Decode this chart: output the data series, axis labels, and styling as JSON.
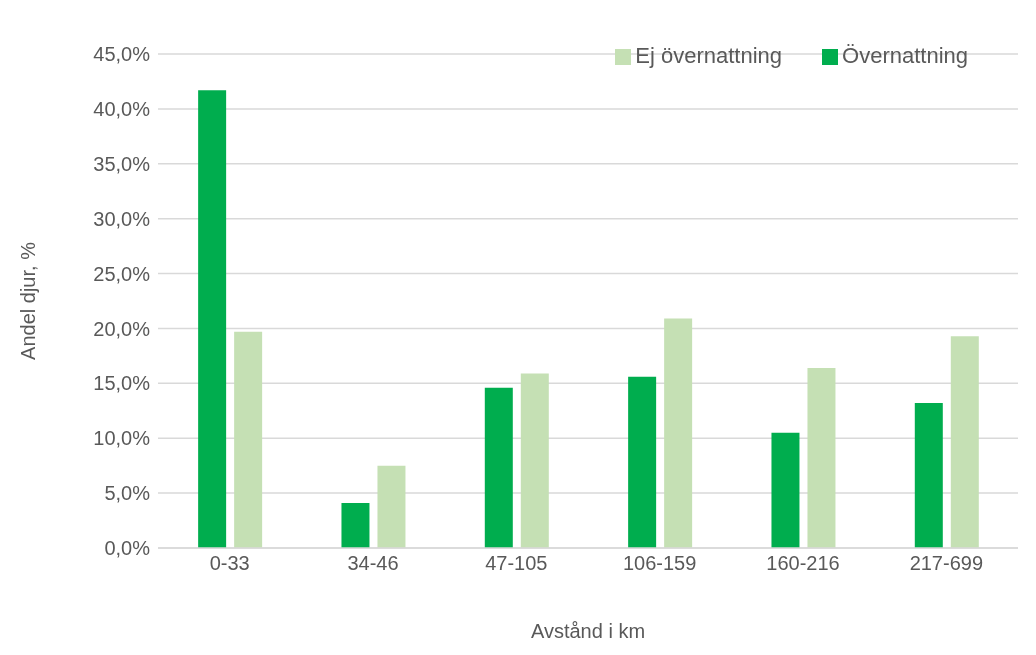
{
  "chart_data": {
    "type": "bar",
    "xlabel": "Avstånd i km",
    "ylabel": "Andel djur, %",
    "categories": [
      "0-33",
      "34-46",
      "47-105",
      "106-159",
      "160-216",
      "217-699"
    ],
    "series": [
      {
        "name": "Övernattning",
        "color": "#00ad4e",
        "values": [
          41.7,
          4.1,
          14.6,
          15.6,
          10.5,
          13.2
        ]
      },
      {
        "name": "Ej övernattning",
        "color": "#c5e0b4",
        "values": [
          19.7,
          7.5,
          15.9,
          20.9,
          16.4,
          19.3
        ]
      }
    ],
    "ylim": [
      0,
      45
    ],
    "yticks": [
      {
        "value": 0,
        "label": "0,0%"
      },
      {
        "value": 5,
        "label": "5,0%"
      },
      {
        "value": 10,
        "label": "10,0%"
      },
      {
        "value": 15,
        "label": "15,0%"
      },
      {
        "value": 20,
        "label": "20,0%"
      },
      {
        "value": 25,
        "label": "25,0%"
      },
      {
        "value": 30,
        "label": "30,0%"
      },
      {
        "value": 35,
        "label": "35,0%"
      },
      {
        "value": 40,
        "label": "40,0%"
      },
      {
        "value": 45,
        "label": "45,0%"
      }
    ],
    "grid": "y",
    "legend": "top right"
  }
}
